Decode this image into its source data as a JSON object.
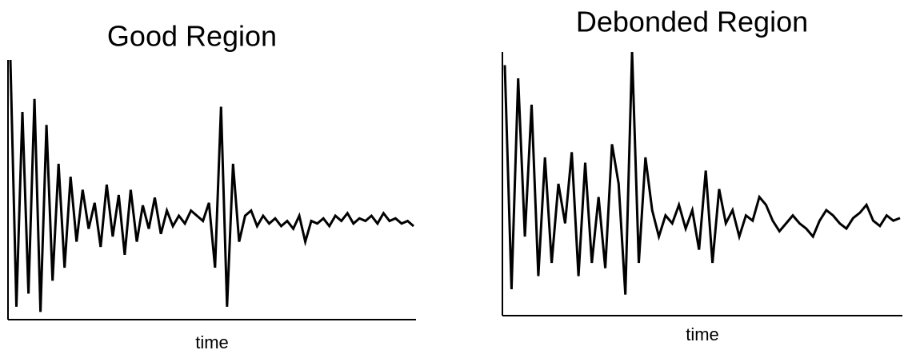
{
  "chart_data": [
    {
      "type": "line",
      "title": "Good Region",
      "x_label": "time",
      "color": "#000000",
      "ylim": [
        0,
        100
      ],
      "values": [
        100,
        5,
        80,
        10,
        85,
        3,
        75,
        15,
        60,
        20,
        55,
        30,
        50,
        35,
        45,
        28,
        52,
        32,
        48,
        25,
        50,
        30,
        44,
        35,
        47,
        33,
        42,
        36,
        40,
        37,
        42,
        40,
        38,
        45,
        20,
        82,
        5,
        60,
        30,
        40,
        42,
        36,
        40,
        37,
        39,
        36,
        38,
        35,
        40,
        30,
        38,
        37,
        39,
        36,
        40,
        38,
        41,
        37,
        39,
        38,
        40,
        37,
        41,
        38,
        39,
        37,
        38,
        36
      ]
    },
    {
      "type": "line",
      "title": "Debonded Region",
      "x_label": "time",
      "color": "#000000",
      "ylim": [
        0,
        100
      ],
      "values": [
        95,
        10,
        90,
        30,
        80,
        15,
        60,
        20,
        50,
        35,
        62,
        15,
        58,
        20,
        45,
        18,
        65,
        50,
        8,
        100,
        20,
        60,
        40,
        30,
        38,
        35,
        42,
        33,
        40,
        25,
        55,
        20,
        48,
        35,
        40,
        30,
        38,
        36,
        45,
        42,
        36,
        32,
        35,
        38,
        35,
        33,
        30,
        36,
        40,
        38,
        35,
        33,
        37,
        39,
        42,
        36,
        34,
        38,
        36,
        37
      ]
    }
  ]
}
